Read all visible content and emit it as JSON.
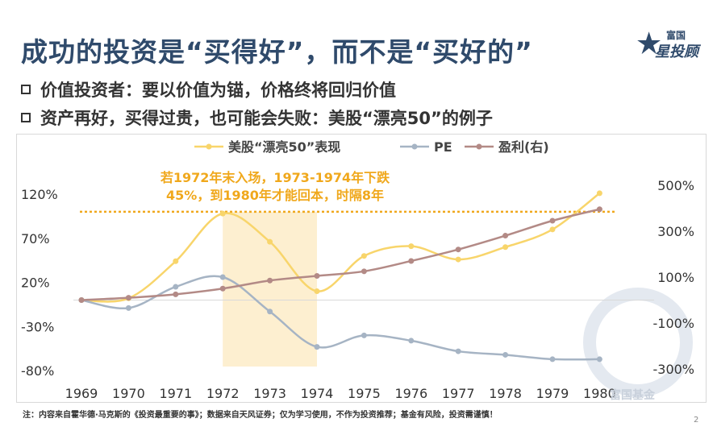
{
  "title": "成功的投资是“买得好”，而不是“买好的”",
  "logo": {
    "top": "富国",
    "main": "星投顾"
  },
  "bullets": [
    "价值投资者：要以价值为锚，价格终将回归价值",
    "资产再好，买得过贵，也可能会失败：美股“漂亮50”的例子"
  ],
  "colors": {
    "title": "#2f4a6b",
    "nifty": "#f8d56b",
    "pe": "#a6b4c4",
    "earnings": "#b38a86",
    "annotation": "#f0a81c",
    "highlight": "#fdefd0"
  },
  "chart_data": {
    "type": "line",
    "categories": [
      "1969",
      "1970",
      "1971",
      "1972",
      "1973",
      "1974",
      "1975",
      "1976",
      "1977",
      "1978",
      "1979",
      "1980"
    ],
    "series": [
      {
        "name": "美股“漂亮50”表现",
        "axis": "left",
        "values": [
          0,
          2,
          44,
          98,
          66,
          10,
          50,
          61,
          46,
          60,
          80,
          121
        ]
      },
      {
        "name": "PE",
        "axis": "left",
        "values": [
          0,
          -9,
          15,
          26,
          -13,
          -53,
          -40,
          -46,
          -58,
          -62,
          -67,
          -67
        ]
      },
      {
        "name": "盈利(右)",
        "axis": "right",
        "values": [
          0,
          10,
          25,
          50,
          85,
          105,
          125,
          170,
          220,
          280,
          345,
          395
        ]
      }
    ],
    "left_ticks": [
      "120%",
      "70%",
      "20%",
      "-30%",
      "-80%"
    ],
    "right_ticks": [
      "500%",
      "300%",
      "100%",
      "-100%",
      "-300%"
    ],
    "ylim_left": [
      -80,
      120
    ],
    "ylim_right": [
      -300,
      500
    ],
    "reference_line": {
      "value": 100,
      "axis": "left",
      "style": "dotted"
    },
    "highlight_range": [
      "1972",
      "1974"
    ],
    "annotation": [
      "若1972年末入场，1973-1974年下跌",
      "45%，到1980年才能回本，时隔8年"
    ],
    "legend_position": "top",
    "grid": false
  },
  "footnote": "注：内容来自霍华德·马克斯的《投资最重要的事》；数据来自天风证券；仅为学习使用，不作为投资推荐；基金有风险，投资需谨慎！",
  "watermark": "富国基金",
  "page_number": "2"
}
